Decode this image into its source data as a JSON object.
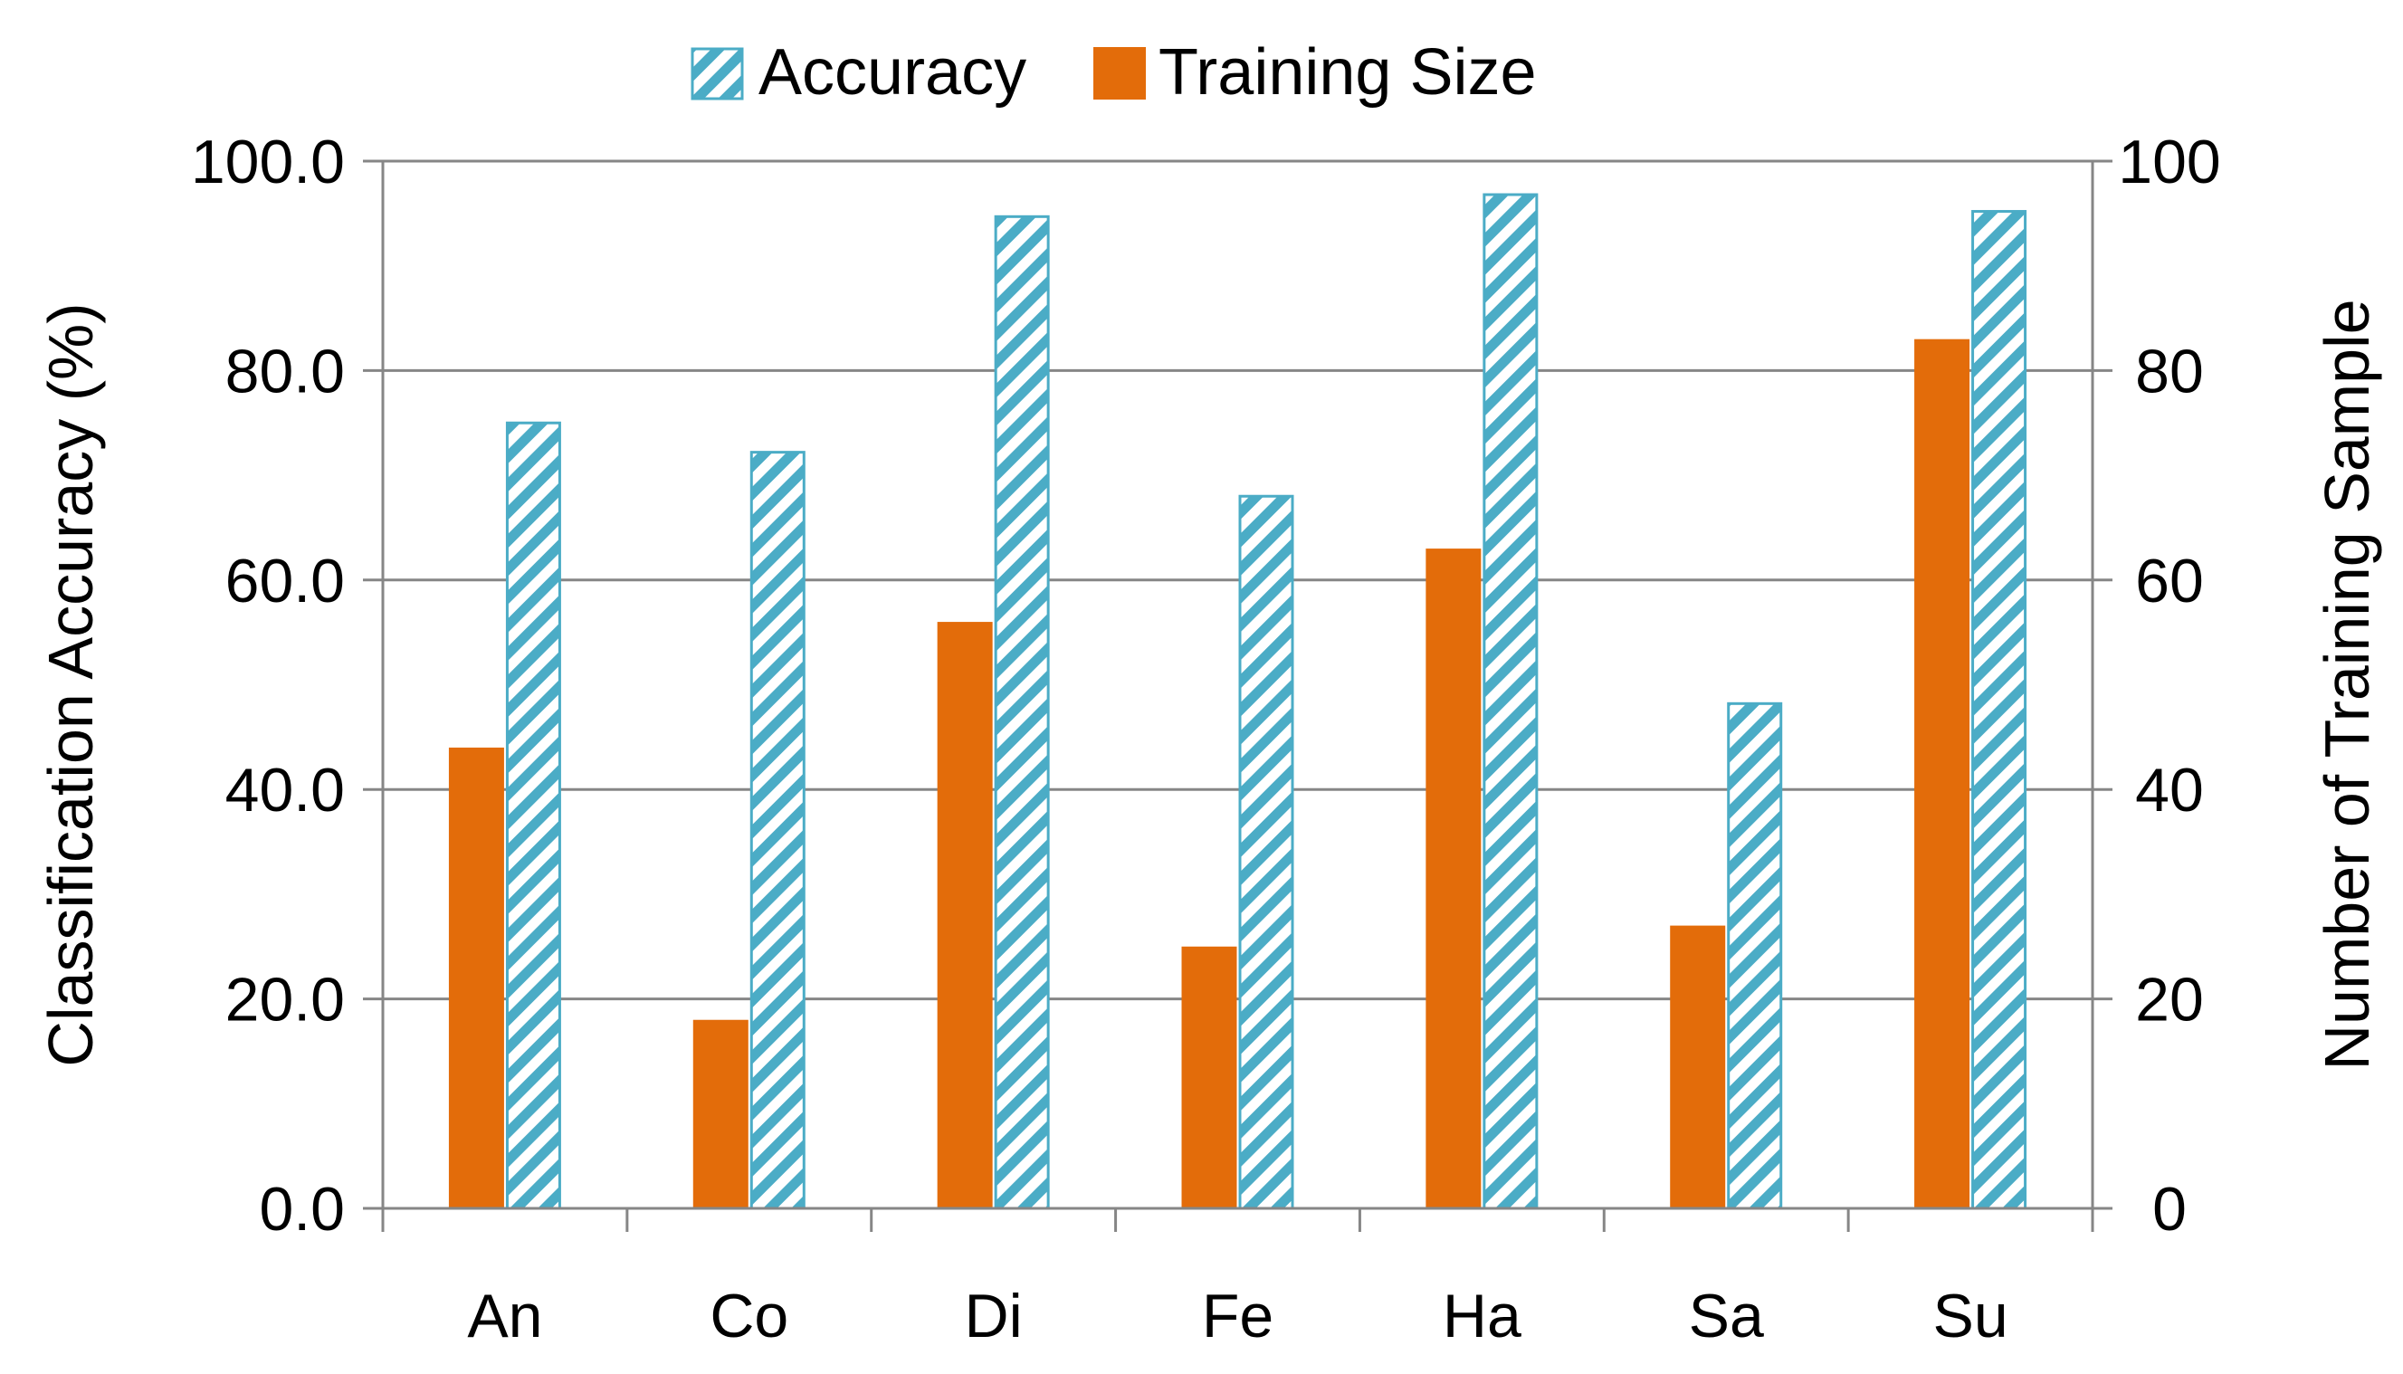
{
  "chart_data": {
    "type": "bar",
    "categories": [
      "An",
      "Co",
      "Di",
      "Fe",
      "Ha",
      "Sa",
      "Su"
    ],
    "series": [
      {
        "name": "Training Size",
        "axis": "right",
        "color": "#e36c0a",
        "values": [
          44,
          18,
          56,
          25,
          63,
          27,
          83
        ]
      },
      {
        "name": "Accuracy",
        "axis": "left",
        "color": "#4bacc6",
        "pattern": "diagonal-hatch",
        "values": [
          75.0,
          72.2,
          94.7,
          68.0,
          96.8,
          48.2,
          95.2
        ]
      }
    ],
    "ylabel": "Classification Accuracy (%)",
    "ylabel_right": "Number of Training Sample",
    "ylim": [
      0,
      100
    ],
    "ylim_right": [
      0,
      100
    ],
    "yticks": [
      "0.0",
      "20.0",
      "40.0",
      "60.0",
      "80.0",
      "100.0"
    ],
    "yticks_right": [
      "0",
      "20",
      "40",
      "60",
      "80",
      "100"
    ],
    "grid": true,
    "legend": "top-center",
    "legend_order": [
      "Accuracy",
      "Training Size"
    ]
  }
}
